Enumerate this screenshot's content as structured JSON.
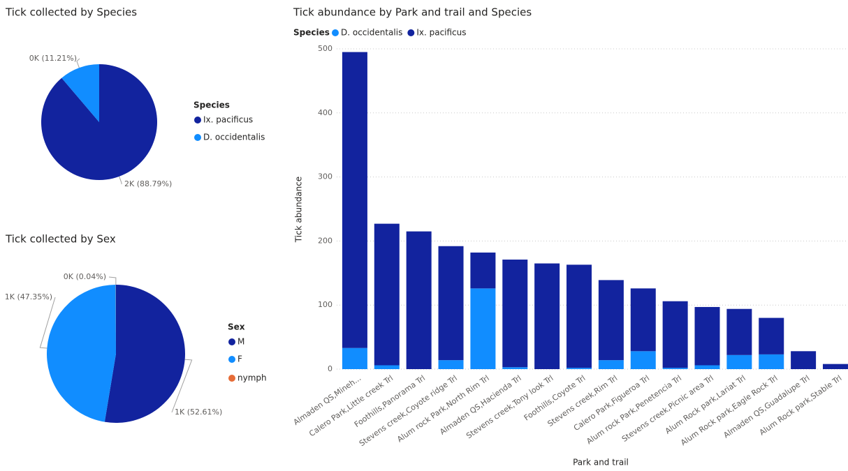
{
  "chart_data": [
    {
      "type": "pie",
      "title": "Tick collected by Species",
      "legend_title": "Species",
      "categories": [
        "Ix.  pacificus",
        "D.  occidentalis"
      ],
      "values": [
        88.79,
        11.21
      ],
      "value_labels": [
        "2K (88.79%)",
        "0K (11.21%)"
      ],
      "colors": [
        "#12239E",
        "#118DFF"
      ]
    },
    {
      "type": "pie",
      "title": "Tick collected by Sex",
      "legend_title": "Sex",
      "categories": [
        "M",
        "F",
        "nymph"
      ],
      "values": [
        52.61,
        47.35,
        0.04
      ],
      "value_labels": [
        "1K (52.61%)",
        "1K (47.35%)",
        "0K (0.04%)"
      ],
      "colors": [
        "#12239E",
        "#118DFF",
        "#E66C37"
      ]
    },
    {
      "type": "stacked_bar",
      "title": "Tick abundance by Park and trail and Species",
      "legend_title": "Species",
      "x_label": "Park and trail",
      "y_label": "Tick abundance",
      "categories": [
        "Almaden QS,Mineh...",
        "Calero Park,Little creek Trl",
        "Foothills,Panorama Trl",
        "Stevens creek,Coyote ridge Trl",
        "Alum rock Park,North Rim Trl",
        "Almaden QS,Hacienda Trl",
        "Stevens creek,Tony look Trl",
        "Foothills,Coyote Trl",
        "Stevens creek,Rim Trl",
        "Calero Park,Figueroa Trl",
        "Alum rock Park,Penetencia Trl",
        "Stevens creek,Picnic area Trl",
        "Alum Rock park,Lariat Trl",
        "Alum Rock park,Eagle Rock Trl",
        "Almaden QS,Guadalupe Trl",
        "Alum Rock park,Stable Trl"
      ],
      "series": [
        {
          "name": "D.  occidentalis",
          "color": "#118DFF",
          "values": [
            33,
            6,
            0,
            14,
            126,
            3,
            0,
            2,
            14,
            28,
            2,
            6,
            22,
            23,
            0,
            0
          ]
        },
        {
          "name": "Ix.  pacificus",
          "color": "#12239E",
          "values": [
            462,
            221,
            215,
            178,
            56,
            168,
            165,
            161,
            125,
            98,
            104,
            91,
            72,
            57,
            28,
            8
          ]
        }
      ],
      "ylim": [
        0,
        500
      ],
      "yticks": [
        0,
        100,
        200,
        300,
        400,
        500
      ],
      "grid": true
    }
  ]
}
